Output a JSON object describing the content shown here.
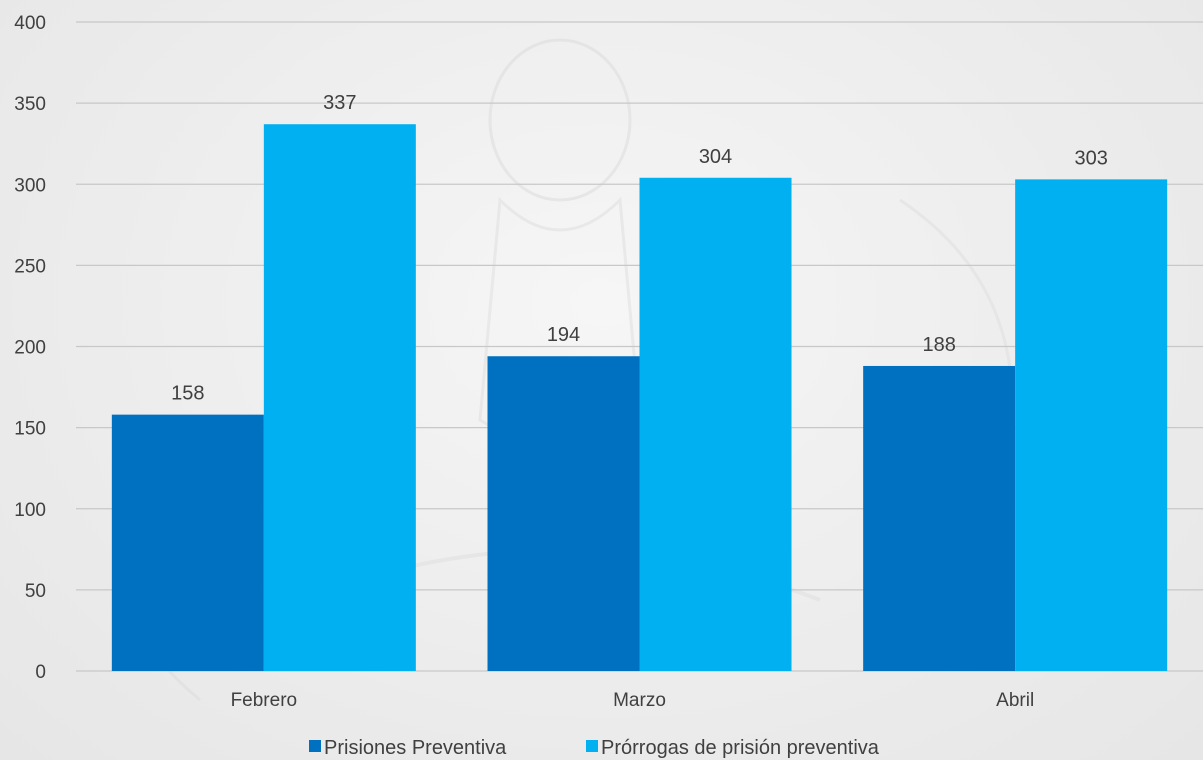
{
  "chart_data": {
    "type": "bar",
    "title": "",
    "xlabel": "",
    "ylabel": "",
    "categories": [
      "Febrero",
      "Marzo",
      "Abril"
    ],
    "series": [
      {
        "name": "Prisiones Preventiva",
        "values": [
          158,
          194,
          188
        ],
        "color": "#0070c0"
      },
      {
        "name": "Prórrogas de prisión preventiva",
        "values": [
          337,
          304,
          303
        ],
        "color": "#00b0f0"
      }
    ],
    "ylim": [
      0,
      400
    ],
    "yticks": [
      0,
      50,
      100,
      150,
      200,
      250,
      300,
      350,
      400
    ],
    "grid": true,
    "legend": "bottom-center",
    "data_labels": true
  },
  "colors": {
    "gridline": "#c8c8c8",
    "text": "#404040"
  }
}
